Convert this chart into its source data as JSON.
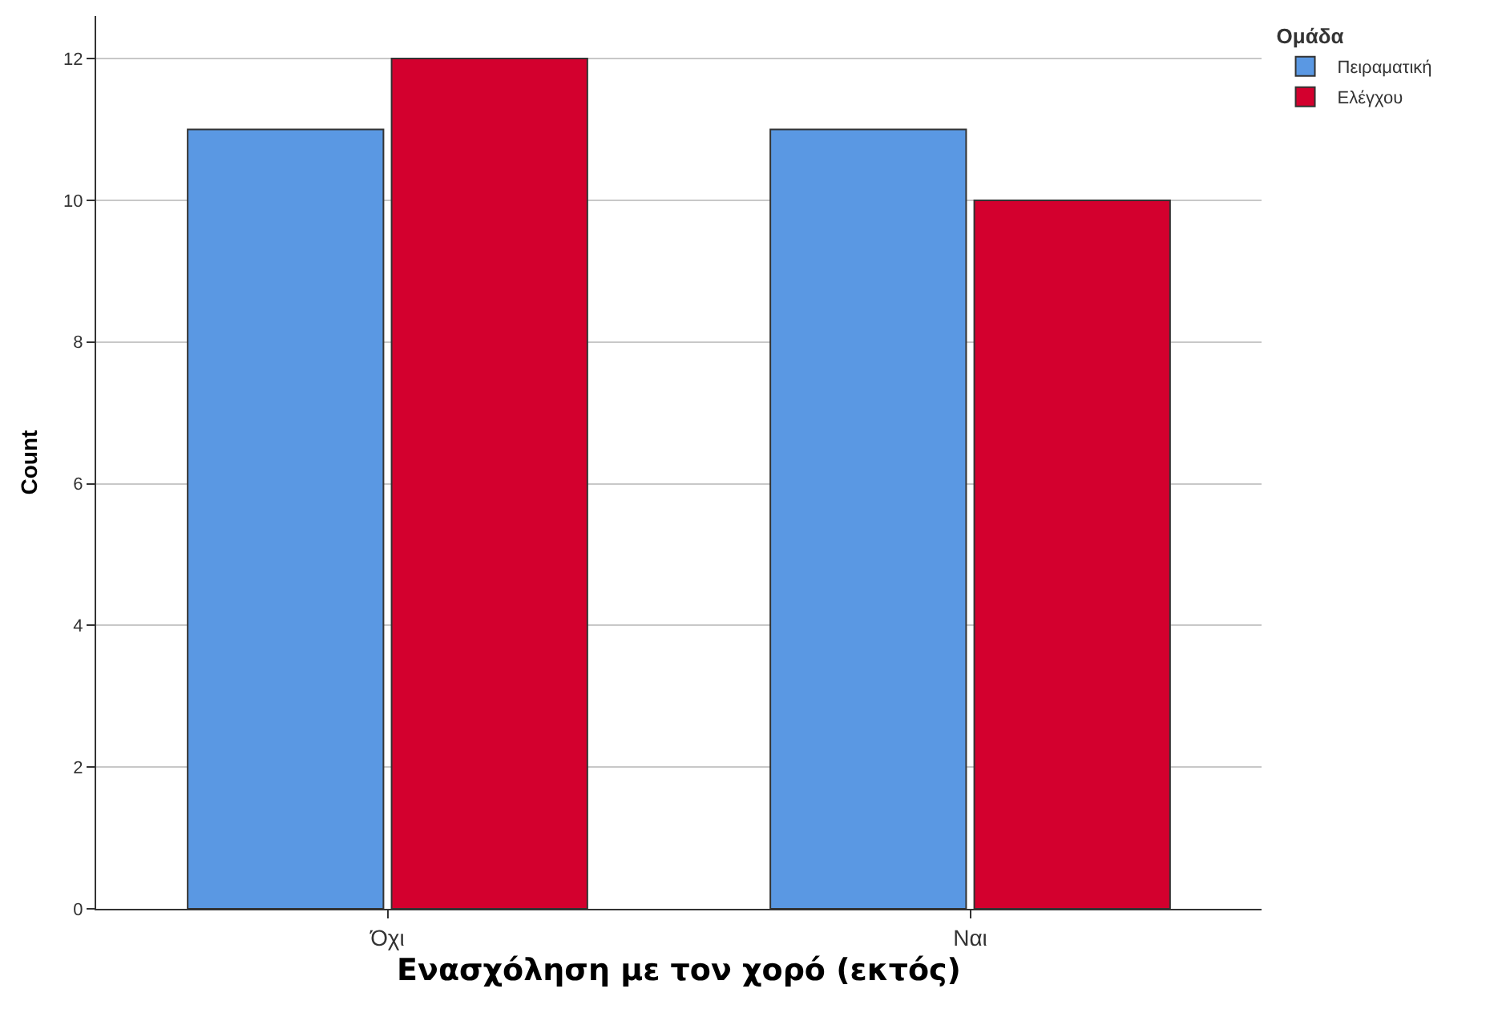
{
  "chart_data": {
    "type": "bar",
    "xlabel": "Ενασχόληση με τον χορό (εκτός)",
    "ylabel": "Count",
    "legend_title": "Ομάδα",
    "categories": [
      "Όχι",
      "Ναι"
    ],
    "series": [
      {
        "name": "Πειραματική",
        "color": "#5a98e3",
        "values": [
          11,
          11
        ]
      },
      {
        "name": "Ελέγχου",
        "color": "#d3002e",
        "values": [
          12,
          10
        ]
      }
    ],
    "ylim": [
      0,
      12.6
    ],
    "yticks": [
      0,
      2,
      4,
      6,
      8,
      10,
      12
    ],
    "grid": "y",
    "legend": "top right"
  }
}
